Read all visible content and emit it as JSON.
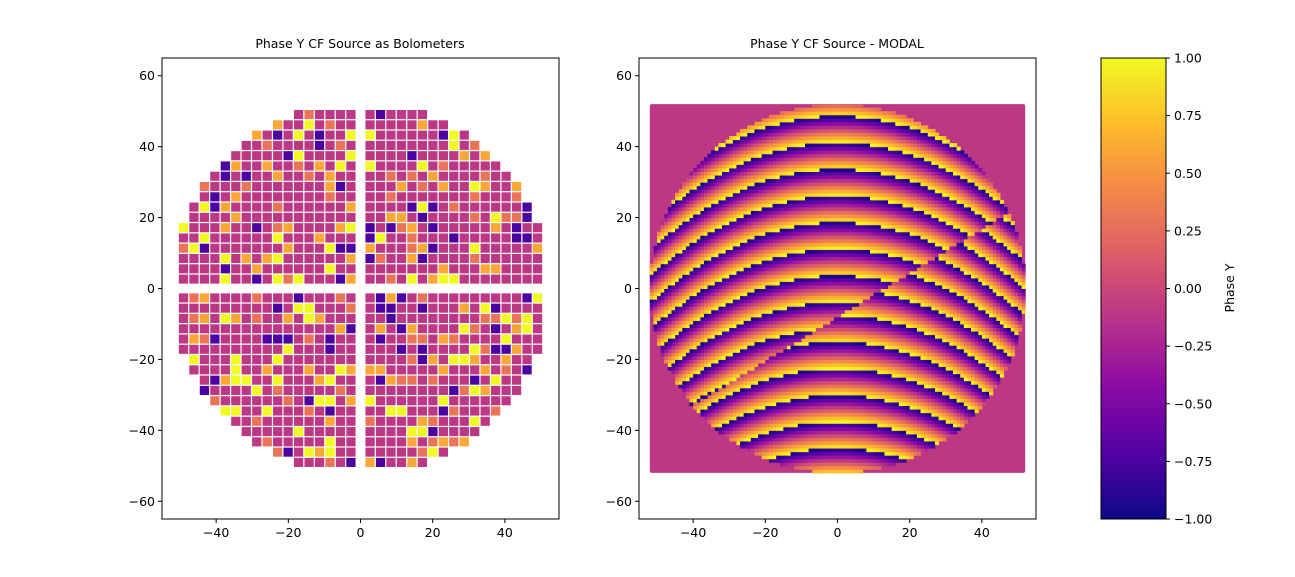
{
  "chart_data": [
    {
      "type": "heatmap",
      "title": "Phase Y CF Source as Bolometers",
      "xlabel": "",
      "ylabel": "",
      "xlim": [
        -55,
        55
      ],
      "ylim": [
        -65,
        65
      ],
      "xticks": [
        -40,
        -20,
        0,
        20,
        40
      ],
      "yticks": [
        -60,
        -40,
        -20,
        0,
        20,
        40,
        60
      ],
      "tick_labels_x": [
        "−40",
        "−20",
        "0",
        "20",
        "40"
      ],
      "tick_labels_y": [
        "−60",
        "−40",
        "−20",
        "0",
        "20",
        "40",
        "60"
      ],
      "grid": false,
      "pixel_pitch": 2.9,
      "radius": 52,
      "gap_x": [
        -1,
        1
      ],
      "gap_y": [
        -1,
        1
      ],
      "phase_range": [
        -1,
        1
      ],
      "dominant_value": -0.1
    },
    {
      "type": "heatmap",
      "title": "Phase Y CF Source - MODAL",
      "xlabel": "",
      "ylabel": "",
      "xlim": [
        -55,
        55
      ],
      "ylim": [
        -65,
        65
      ],
      "xticks": [
        -40,
        -20,
        0,
        20,
        40
      ],
      "yticks": [
        -60,
        -40,
        -20,
        0,
        20,
        40,
        60
      ],
      "tick_labels_x": [
        "−40",
        "−20",
        "0",
        "20",
        "40"
      ],
      "tick_labels_y": [
        "−60",
        "−40",
        "−20",
        "0",
        "20",
        "40",
        "60"
      ],
      "grid": false,
      "square_extent": [
        -52,
        52
      ],
      "radius": 52,
      "background_value": -0.1,
      "phase_range": [
        -1,
        1
      ]
    }
  ],
  "colorbar": {
    "label": "Phase Y",
    "colormap": "plasma",
    "range": [
      -1,
      1
    ],
    "ticks": [
      1.0,
      0.75,
      0.5,
      0.25,
      0.0,
      -0.25,
      -0.5,
      -0.75,
      -1.0
    ],
    "tick_labels": [
      "1.00",
      "0.75",
      "0.50",
      "0.25",
      "0.00",
      "−0.25",
      "−0.50",
      "−0.75",
      "−1.00"
    ],
    "colors": [
      "#0d0887",
      "#5302a3",
      "#8b0aa5",
      "#b83289",
      "#db5c68",
      "#f48849",
      "#febc2a",
      "#f0f921"
    ]
  }
}
